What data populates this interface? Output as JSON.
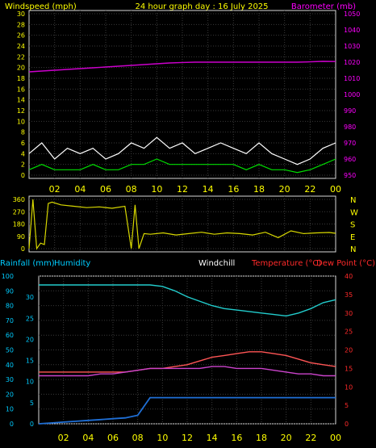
{
  "title": "24 hour graph day : 16 July 2025",
  "colors": {
    "background": "#000000",
    "frame": "#d8d8d8",
    "grid": "#3a3a3a",
    "axis_yellow": "#ffff00",
    "axis_magenta": "#ff00ff",
    "axis_cyan": "#00ccff",
    "axis_blue": "#3399ff",
    "axis_red": "#ff2a2a",
    "windspeed_gust": "#ffffff",
    "windspeed_avg": "#00dd00",
    "barometer": "#cc00cc",
    "wind_direction": "#d8d800",
    "humidity": "#22cccc",
    "temperature": "#ff5555",
    "dew_point": "#cc44cc",
    "rainfall": "#1f6fd6"
  },
  "x_axis_ticks": [
    "02",
    "04",
    "06",
    "08",
    "10",
    "12",
    "14",
    "16",
    "18",
    "20",
    "22",
    "00"
  ],
  "chart_data": [
    {
      "type": "line",
      "name": "wind-barometer",
      "legend_left": "Windspeed (mph)",
      "legend_right": "Barometer (mb)",
      "x": [
        0,
        1,
        2,
        3,
        4,
        5,
        6,
        7,
        8,
        9,
        10,
        11,
        12,
        13,
        14,
        15,
        16,
        17,
        18,
        19,
        20,
        21,
        22,
        23,
        24
      ],
      "left_axis": {
        "ylim": [
          0,
          30
        ],
        "ticks": [
          "0",
          "2",
          "4",
          "6",
          "8",
          "10",
          "12",
          "14",
          "16",
          "18",
          "20",
          "22",
          "24",
          "26",
          "28",
          "30"
        ]
      },
      "right_axis": {
        "ylim": [
          950,
          1050
        ],
        "ticks": [
          "950",
          "960",
          "970",
          "980",
          "990",
          "1000",
          "1010",
          "1020",
          "1030",
          "1040",
          "1050"
        ]
      },
      "series": [
        {
          "name": "Windspeed gust",
          "axis": "left",
          "values": [
            4,
            6,
            3,
            5,
            4,
            5,
            3,
            4,
            6,
            5,
            7,
            5,
            6,
            4,
            5,
            6,
            5,
            4,
            6,
            4,
            3,
            2,
            3,
            5,
            6
          ]
        },
        {
          "name": "Windspeed average",
          "axis": "left",
          "values": [
            1,
            2,
            1,
            1,
            1,
            2,
            1,
            1,
            2,
            2,
            3,
            2,
            2,
            2,
            2,
            2,
            2,
            1,
            2,
            1,
            1,
            0.5,
            1,
            2,
            3
          ]
        },
        {
          "name": "Barometer",
          "axis": "right",
          "values": [
            1014,
            1014.5,
            1015,
            1015.5,
            1016,
            1016.5,
            1017,
            1017.5,
            1018,
            1018.5,
            1019,
            1019.5,
            1019.8,
            1020,
            1020,
            1020,
            1020,
            1020,
            1020,
            1020,
            1020,
            1020,
            1020.2,
            1020.5,
            1020.4
          ]
        }
      ]
    },
    {
      "type": "line",
      "name": "wind-direction",
      "left_axis": {
        "ylim": [
          0,
          360
        ],
        "ticks": [
          "0",
          "90",
          "180",
          "270",
          "360"
        ]
      },
      "right_axis": {
        "ticks": [
          "N",
          "E",
          "S",
          "W",
          "N"
        ]
      },
      "x": [
        0,
        0.3,
        0.6,
        0.9,
        1.2,
        1.5,
        1.8,
        2.5,
        3.5,
        4.5,
        5.5,
        6.5,
        7.5,
        8.0,
        8.3,
        8.6,
        9.0,
        9.5,
        10.5,
        11.5,
        12.5,
        13.5,
        14.5,
        15.5,
        16.5,
        17.5,
        18.5,
        19.5,
        20.5,
        21.5,
        22.5,
        23.5,
        24
      ],
      "series": [
        {
          "name": "Wind direction",
          "values": [
            0,
            360,
            0,
            40,
            30,
            330,
            340,
            320,
            310,
            300,
            305,
            295,
            310,
            0,
            320,
            0,
            110,
            105,
            115,
            100,
            110,
            120,
            105,
            115,
            110,
            100,
            120,
            80,
            130,
            110,
            115,
            118,
            112
          ]
        }
      ]
    },
    {
      "type": "line",
      "name": "rain-humidity-temperature",
      "legend": [
        "Rainfall (mm)",
        "Humidity",
        "Windchill",
        "Temperature (°C)",
        "Dew Point (°C)"
      ],
      "x": [
        0,
        1,
        2,
        3,
        4,
        5,
        6,
        7,
        8,
        9,
        10,
        11,
        12,
        13,
        14,
        15,
        16,
        17,
        18,
        19,
        20,
        21,
        22,
        23,
        24
      ],
      "humidity_axis": {
        "ylim": [
          0,
          100
        ],
        "ticks": [
          "0",
          "10",
          "20",
          "30",
          "40",
          "50",
          "60",
          "70",
          "80",
          "90",
          "100"
        ]
      },
      "rainfall_axis": {
        "ylim": [
          0,
          35
        ],
        "ticks": [
          "0",
          "5",
          "10",
          "15",
          "20",
          "25",
          "30"
        ]
      },
      "temperature_axis": {
        "ylim": [
          0,
          40
        ],
        "ticks": [
          "0",
          "5",
          "10",
          "15",
          "20",
          "25",
          "30",
          "35",
          "40"
        ]
      },
      "series": [
        {
          "name": "Humidity",
          "axis": "humidity",
          "values": [
            94,
            94,
            94,
            94,
            94,
            94,
            94,
            94,
            94,
            94,
            93,
            90,
            86,
            83,
            80,
            78,
            77,
            76,
            75,
            74,
            73,
            75,
            78,
            82,
            84
          ]
        },
        {
          "name": "Rainfall",
          "axis": "rainfall",
          "values": [
            0,
            0.2,
            0.4,
            0.6,
            0.8,
            1.0,
            1.2,
            1.4,
            2.0,
            6.2,
            6.2,
            6.2,
            6.2,
            6.2,
            6.2,
            6.2,
            6.2,
            6.2,
            6.2,
            6.2,
            6.2,
            6.2,
            6.2,
            6.2,
            6.2
          ]
        },
        {
          "name": "Temperature",
          "axis": "temperature",
          "values": [
            14,
            14,
            14,
            14,
            14,
            14,
            14,
            14,
            14.5,
            15,
            15,
            15.5,
            16,
            17,
            18,
            18.5,
            19,
            19.5,
            19.5,
            19,
            18.5,
            17.5,
            16.5,
            16,
            15.5
          ]
        },
        {
          "name": "Dew Point",
          "axis": "temperature",
          "values": [
            13,
            13,
            13,
            13,
            13,
            13.5,
            13.5,
            14,
            14.5,
            15,
            15,
            15,
            15,
            15,
            15.5,
            15.5,
            15,
            15,
            15,
            14.5,
            14,
            13.5,
            13.5,
            13,
            13
          ]
        }
      ]
    }
  ]
}
